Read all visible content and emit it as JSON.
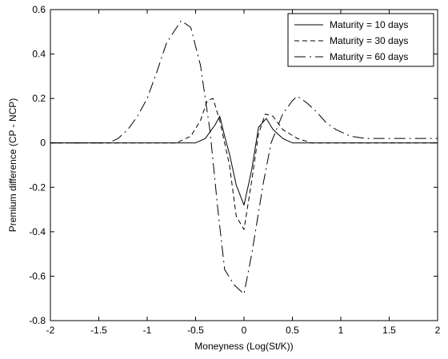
{
  "chart_data": {
    "type": "line",
    "title": "",
    "xlabel": "Moneyness (Log(St/K))",
    "ylabel": "Premium difference (CP - NCP)",
    "xlim": [
      -2,
      2
    ],
    "ylim": [
      -0.8,
      0.6
    ],
    "x_ticks": [
      -2,
      -1.5,
      -1,
      -0.5,
      0,
      0.5,
      1,
      1.5,
      2
    ],
    "x_tick_labels": [
      "-2",
      "-1.5",
      "-1",
      "-0.5",
      "0",
      "0.5",
      "1",
      "1.5",
      "2"
    ],
    "y_ticks": [
      -0.8,
      -0.6,
      -0.4,
      -0.2,
      0,
      0.2,
      0.4,
      0.6
    ],
    "y_tick_labels": [
      "-0.8",
      "-0.6",
      "-0.4",
      "-0.2",
      "0",
      "0.2",
      "0.4",
      "0.6"
    ],
    "grid": false,
    "legend_position": "top-right",
    "series": [
      {
        "name": "Maturity = 10 days",
        "line_style": "solid",
        "color": "#000000",
        "points": [
          [
            -2,
            0
          ],
          [
            -0.5,
            0
          ],
          [
            -0.4,
            0.02
          ],
          [
            -0.3,
            0.08
          ],
          [
            -0.25,
            0.12
          ],
          [
            -0.2,
            0.03
          ],
          [
            -0.15,
            -0.05
          ],
          [
            -0.08,
            -0.19
          ],
          [
            0,
            -0.28
          ],
          [
            0.08,
            -0.12
          ],
          [
            0.15,
            0.07
          ],
          [
            0.23,
            0.11
          ],
          [
            0.3,
            0.06
          ],
          [
            0.4,
            0.02
          ],
          [
            0.5,
            0
          ],
          [
            2,
            0
          ]
        ]
      },
      {
        "name": "Maturity = 30 days",
        "line_style": "dashed",
        "color": "#000000",
        "points": [
          [
            -2,
            0
          ],
          [
            -0.7,
            0
          ],
          [
            -0.55,
            0.03
          ],
          [
            -0.45,
            0.1
          ],
          [
            -0.38,
            0.19
          ],
          [
            -0.32,
            0.2
          ],
          [
            -0.25,
            0.1
          ],
          [
            -0.15,
            -0.1
          ],
          [
            -0.08,
            -0.33
          ],
          [
            0,
            -0.39
          ],
          [
            0.08,
            -0.17
          ],
          [
            0.15,
            0.04
          ],
          [
            0.22,
            0.13
          ],
          [
            0.3,
            0.12
          ],
          [
            0.4,
            0.06
          ],
          [
            0.55,
            0.02
          ],
          [
            0.7,
            0
          ],
          [
            2,
            0
          ]
        ]
      },
      {
        "name": "Maturity = 60 days",
        "line_style": "dashdot",
        "color": "#000000",
        "points": [
          [
            -2,
            0
          ],
          [
            -1.4,
            0
          ],
          [
            -1.3,
            0.02
          ],
          [
            -1.2,
            0.06
          ],
          [
            -1.1,
            0.12
          ],
          [
            -1,
            0.2
          ],
          [
            -0.9,
            0.32
          ],
          [
            -0.8,
            0.45
          ],
          [
            -0.65,
            0.55
          ],
          [
            -0.55,
            0.52
          ],
          [
            -0.45,
            0.35
          ],
          [
            -0.35,
            0.05
          ],
          [
            -0.27,
            -0.3
          ],
          [
            -0.2,
            -0.57
          ],
          [
            -0.1,
            -0.64
          ],
          [
            0,
            -0.68
          ],
          [
            0.08,
            -0.5
          ],
          [
            0.2,
            -0.18
          ],
          [
            0.28,
            0
          ],
          [
            0.4,
            0.13
          ],
          [
            0.5,
            0.19
          ],
          [
            0.55,
            0.21
          ],
          [
            0.65,
            0.18
          ],
          [
            0.75,
            0.14
          ],
          [
            0.85,
            0.09
          ],
          [
            0.95,
            0.06
          ],
          [
            1.1,
            0.03
          ],
          [
            1.25,
            0.02
          ],
          [
            1.5,
            0.02
          ],
          [
            2,
            0.02
          ]
        ]
      }
    ]
  }
}
